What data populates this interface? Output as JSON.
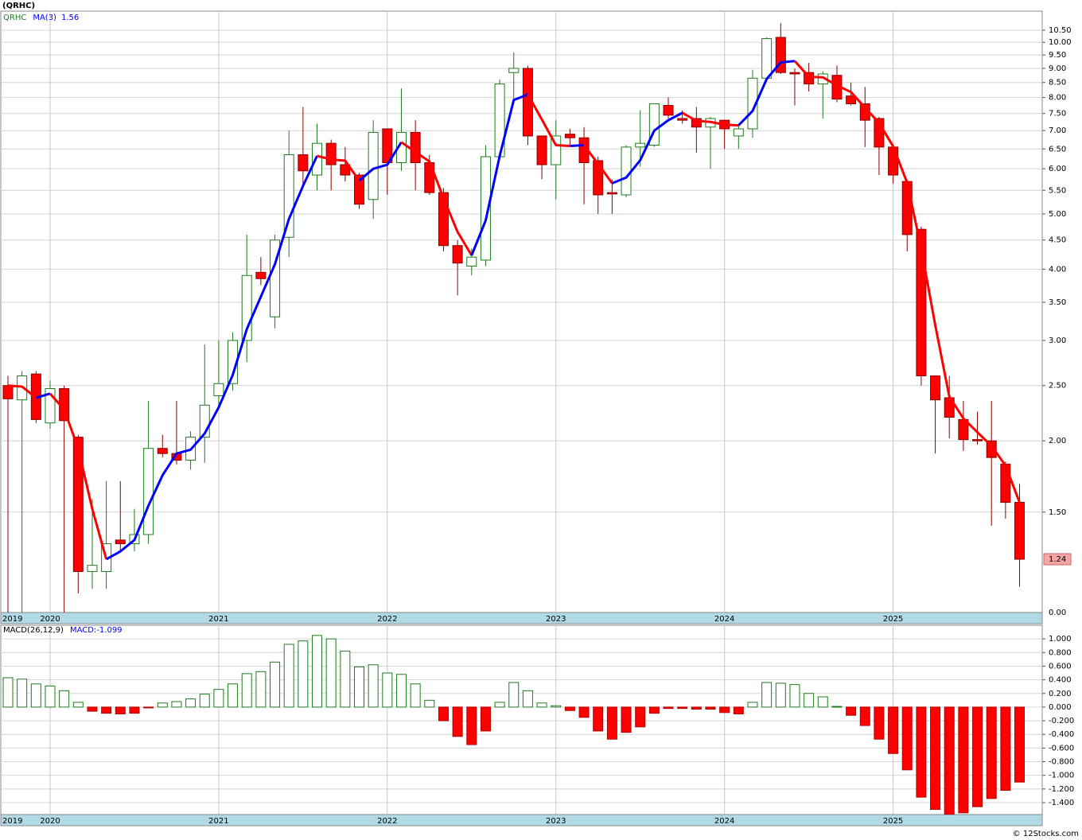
{
  "footer": "© 12Stocks.com",
  "chart_data": [
    {
      "type": "candlestick",
      "title": "(QRHC)",
      "log_scale": true,
      "grid": true,
      "ylim": [
        1.0,
        11.34
      ],
      "floor_label": "0.00",
      "yticks": [
        {
          "value": 10.5,
          "label": "10.50"
        },
        {
          "value": 10,
          "label": "10.00"
        },
        {
          "value": 9.5,
          "label": "9.50"
        },
        {
          "value": 9,
          "label": "9.00"
        },
        {
          "value": 8.5,
          "label": "8.50"
        },
        {
          "value": 8,
          "label": "8.00"
        },
        {
          "value": 7.5,
          "label": "7.50"
        },
        {
          "value": 7,
          "label": "7.00"
        },
        {
          "value": 6.5,
          "label": "6.50"
        },
        {
          "value": 6,
          "label": "6.00"
        },
        {
          "value": 5.5,
          "label": "5.50"
        },
        {
          "value": 5,
          "label": "5.00"
        },
        {
          "value": 4.5,
          "label": "4.50"
        },
        {
          "value": 4,
          "label": "4.00"
        },
        {
          "value": 3.5,
          "label": "3.50"
        },
        {
          "value": 3,
          "label": "3.00"
        },
        {
          "value": 2.5,
          "label": "2.50"
        },
        {
          "value": 2,
          "label": "2.00"
        },
        {
          "value": 1.5,
          "label": "1.50"
        }
      ],
      "up_color": "#1f7a1f",
      "down_color": "#ff0000",
      "categories": [
        "2019",
        null,
        null,
        "2020",
        null,
        null,
        null,
        null,
        null,
        null,
        null,
        null,
        null,
        null,
        null,
        "2021",
        null,
        null,
        null,
        null,
        null,
        null,
        null,
        null,
        null,
        null,
        null,
        "2022",
        null,
        null,
        null,
        null,
        null,
        null,
        null,
        null,
        null,
        null,
        null,
        "2023",
        null,
        null,
        null,
        null,
        null,
        null,
        null,
        null,
        null,
        null,
        null,
        "2024",
        null,
        null,
        null,
        null,
        null,
        null,
        null,
        null,
        null,
        null,
        null,
        "2025",
        null,
        null,
        null,
        null,
        null,
        null,
        null,
        null,
        null
      ],
      "series": [
        {
          "name": "QRHC",
          "color": "#1f7a1f",
          "open": [
            2.5,
            2.36,
            2.62,
            2.15,
            2.47,
            2.03,
            1.18,
            1.18,
            1.34,
            1.32,
            1.37,
            1.94,
            1.9,
            1.85,
            2.03,
            2.4,
            2.52,
            3.0,
            3.95,
            3.3,
            4.55,
            6.35,
            5.85,
            6.65,
            6.1,
            5.85,
            5.3,
            7.05,
            6.15,
            6.95,
            6.15,
            5.45,
            4.4,
            4.05,
            4.15,
            6.3,
            8.85,
            9.0,
            6.85,
            6.1,
            6.9,
            6.8,
            6.2,
            5.45,
            5.4,
            6.55,
            6.6,
            7.75,
            7.35,
            7.35,
            7.1,
            7.3,
            6.85,
            7.05,
            8.65,
            10.2,
            8.85,
            8.85,
            8.45,
            8.75,
            8.05,
            7.8,
            7.35,
            6.55,
            5.7,
            4.7,
            2.6,
            2.38,
            2.18,
            2.01,
            2.0,
            1.82,
            1.56
          ],
          "high": [
            2.6,
            2.65,
            2.65,
            2.55,
            2.5,
            2.05,
            1.58,
            1.7,
            1.7,
            1.52,
            2.35,
            2.05,
            2.35,
            2.08,
            2.95,
            3.0,
            3.1,
            4.6,
            4.2,
            4.6,
            7.0,
            7.7,
            7.2,
            6.75,
            6.55,
            5.9,
            7.3,
            7.05,
            8.3,
            7.3,
            6.35,
            5.55,
            4.5,
            4.35,
            6.6,
            8.6,
            9.6,
            9.1,
            6.85,
            7.3,
            7.05,
            7.1,
            6.3,
            5.75,
            6.6,
            7.6,
            7.8,
            8.0,
            7.6,
            7.7,
            7.4,
            7.3,
            7.2,
            8.95,
            10.2,
            10.8,
            9.0,
            9.2,
            8.9,
            9.1,
            8.5,
            8.35,
            7.4,
            6.6,
            5.75,
            4.75,
            2.6,
            2.6,
            2.35,
            2.25,
            2.35,
            1.84,
            1.68
          ],
          "low": [
            1.0,
            1.0,
            2.15,
            2.1,
            1.0,
            1.08,
            1.1,
            1.1,
            1.28,
            1.28,
            1.32,
            1.87,
            1.82,
            1.78,
            1.83,
            2.3,
            2.45,
            2.75,
            3.75,
            3.15,
            4.2,
            5.6,
            5.5,
            5.5,
            5.7,
            5.1,
            4.9,
            5.4,
            5.95,
            5.5,
            5.4,
            4.3,
            3.6,
            3.9,
            4.05,
            6.25,
            7.8,
            6.6,
            5.75,
            5.3,
            6.6,
            5.2,
            5.0,
            5.0,
            5.35,
            6.05,
            6.55,
            7.35,
            7.2,
            6.4,
            6.0,
            6.5,
            6.5,
            6.8,
            8.6,
            8.8,
            7.75,
            8.2,
            7.35,
            7.85,
            7.75,
            6.55,
            5.85,
            5.65,
            4.3,
            2.5,
            1.9,
            2.02,
            1.92,
            1.97,
            1.42,
            1.46,
            1.11
          ],
          "close": [
            2.37,
            2.6,
            2.18,
            2.47,
            2.17,
            1.18,
            1.21,
            1.32,
            1.32,
            1.37,
            1.94,
            1.9,
            1.85,
            2.03,
            2.31,
            2.52,
            3.0,
            3.9,
            3.85,
            4.5,
            6.35,
            5.95,
            6.65,
            6.1,
            5.85,
            5.2,
            6.95,
            6.15,
            6.95,
            6.15,
            5.45,
            4.4,
            4.1,
            4.2,
            6.3,
            8.45,
            9.0,
            6.85,
            6.1,
            6.85,
            6.8,
            6.15,
            5.4,
            5.42,
            6.55,
            6.65,
            7.8,
            7.45,
            7.3,
            7.1,
            7.35,
            7.05,
            7.05,
            8.65,
            10.15,
            8.85,
            8.8,
            8.45,
            8.8,
            7.95,
            7.8,
            7.3,
            6.55,
            5.85,
            4.6,
            2.6,
            2.36,
            2.2,
            2.01,
            2.0,
            1.87,
            1.56,
            1.24
          ]
        },
        {
          "name": "MA(3)",
          "color": "#0000ff",
          "down_color": "#ff0000",
          "values": [
            2.5,
            2.49,
            2.38,
            2.42,
            2.27,
            1.94,
            1.52,
            1.24,
            1.28,
            1.34,
            1.54,
            1.74,
            1.9,
            1.93,
            2.06,
            2.29,
            2.61,
            3.14,
            3.58,
            4.08,
            4.9,
            5.6,
            6.32,
            6.23,
            6.2,
            5.72,
            6.0,
            6.1,
            6.68,
            6.42,
            6.18,
            5.33,
            4.65,
            4.23,
            4.87,
            6.32,
            7.92,
            8.1,
            7.32,
            6.6,
            6.58,
            6.6,
            6.12,
            5.66,
            5.79,
            6.21,
            7.0,
            7.3,
            7.52,
            7.28,
            7.25,
            7.17,
            7.15,
            7.58,
            8.62,
            9.22,
            9.27,
            8.7,
            8.68,
            8.4,
            8.18,
            7.68,
            7.22,
            6.57,
            5.67,
            4.35,
            3.19,
            2.39,
            2.19,
            2.07,
            1.96,
            1.81,
            1.56
          ]
        }
      ]
    },
    {
      "type": "bar",
      "title": "MACD(26,12,9)",
      "grid": true,
      "ylim": [
        -1.575,
        1.2
      ],
      "yticks": [
        {
          "value": 1,
          "label": "1.000"
        },
        {
          "value": 0.8,
          "label": "0.800"
        },
        {
          "value": 0.6,
          "label": "0.600"
        },
        {
          "value": 0.4,
          "label": "0.400"
        },
        {
          "value": 0.2,
          "label": "0.200"
        },
        {
          "value": 0,
          "label": "0.000"
        },
        {
          "value": -0.2,
          "label": "-0.200"
        },
        {
          "value": -0.4,
          "label": "-0.400"
        },
        {
          "value": -0.6,
          "label": "-0.600"
        },
        {
          "value": -0.8,
          "label": "-0.800"
        },
        {
          "value": -1,
          "label": "-1.000"
        },
        {
          "value": -1.2,
          "label": "-1.200"
        },
        {
          "value": -1.4,
          "label": "-1.400"
        }
      ],
      "up_color": "#1f7a1f",
      "down_color": "#ff0000",
      "categories": [
        "2019",
        null,
        null,
        "2020",
        null,
        null,
        null,
        null,
        null,
        null,
        null,
        null,
        null,
        null,
        null,
        "2021",
        null,
        null,
        null,
        null,
        null,
        null,
        null,
        null,
        null,
        null,
        null,
        "2022",
        null,
        null,
        null,
        null,
        null,
        null,
        null,
        null,
        null,
        null,
        null,
        "2023",
        null,
        null,
        null,
        null,
        null,
        null,
        null,
        null,
        null,
        null,
        null,
        "2024",
        null,
        null,
        null,
        null,
        null,
        null,
        null,
        null,
        null,
        null,
        null,
        "2025",
        null,
        null,
        null,
        null,
        null,
        null,
        null,
        null,
        null
      ],
      "series": [
        {
          "name": "MACD:",
          "color": "#0000ff",
          "values": [
            0.43,
            0.41,
            0.34,
            0.31,
            0.24,
            0.07,
            -0.06,
            -0.09,
            -0.1,
            -0.09,
            -0.01,
            0.06,
            0.08,
            0.12,
            0.19,
            0.26,
            0.34,
            0.49,
            0.52,
            0.66,
            0.92,
            0.97,
            1.05,
            1.0,
            0.82,
            0.59,
            0.62,
            0.5,
            0.48,
            0.34,
            0.1,
            -0.2,
            -0.43,
            -0.55,
            -0.35,
            0.07,
            0.36,
            0.24,
            0.06,
            0.02,
            -0.05,
            -0.15,
            -0.35,
            -0.47,
            -0.37,
            -0.29,
            -0.09,
            -0.02,
            -0.02,
            -0.03,
            -0.03,
            -0.08,
            -0.1,
            0.07,
            0.36,
            0.35,
            0.33,
            0.2,
            0.15,
            0.01,
            -0.12,
            -0.27,
            -0.47,
            -0.68,
            -0.92,
            -1.32,
            -1.5,
            -1.57,
            -1.55,
            -1.46,
            -1.34,
            -1.22,
            -1.099
          ]
        }
      ]
    }
  ]
}
